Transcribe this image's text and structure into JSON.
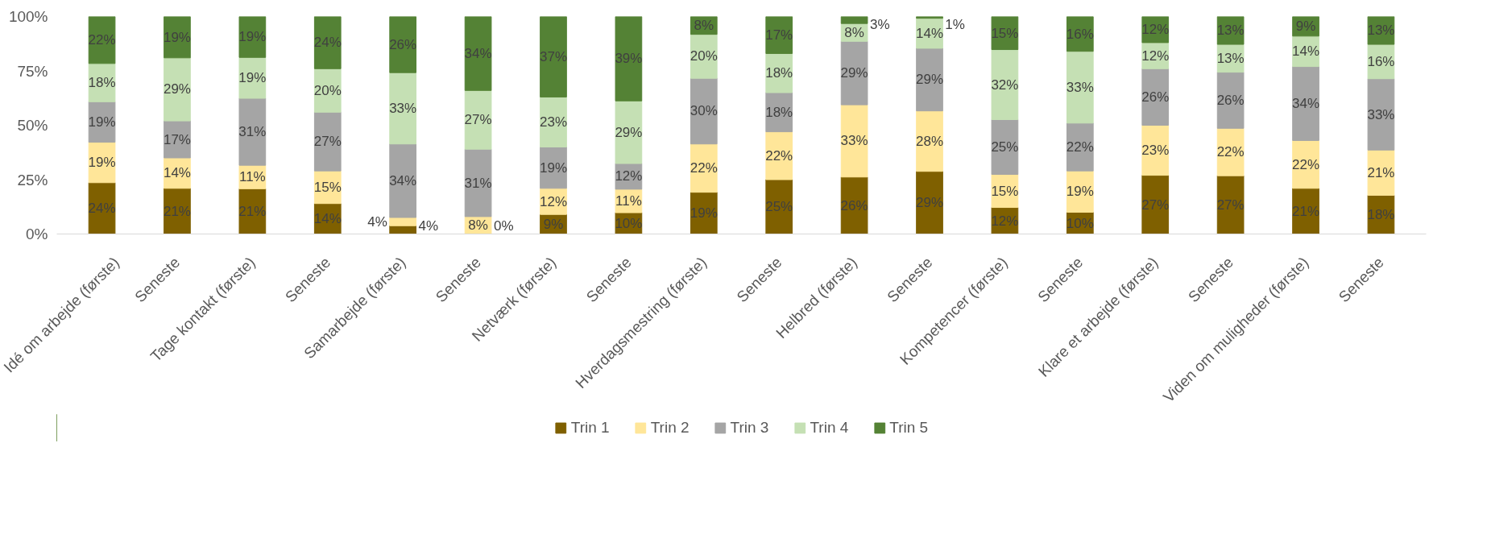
{
  "chart_data": {
    "type": "bar",
    "stacked": true,
    "categories": [
      "Idé om arbejde (første)",
      "Seneste",
      "Tage kontakt (første)",
      "Seneste",
      "Samarbejde (første)",
      "Seneste",
      "Netværk (første)",
      "Seneste",
      "Hverdagsmestring (første)",
      "Seneste",
      "Helbred (første)",
      "Seneste",
      "Kompetencer (første)",
      "Seneste",
      "Klare et arbejde (første)",
      "Seneste",
      "Viden om muligheder (første)",
      "Seneste"
    ],
    "series": [
      {
        "name": "Trin 1",
        "color": "#7f6000",
        "values": [
          23.6,
          21,
          20.8,
          14,
          3.8,
          0,
          9,
          9.8,
          19.2,
          25,
          26.2,
          28.8,
          12.2,
          10,
          27,
          26.8,
          21,
          17.8
        ],
        "value_labels": [
          "24%",
          "21%",
          "21%",
          "14%",
          "4%",
          "0%",
          "9%",
          "10%",
          "19%",
          "25%",
          "26%",
          "29%",
          "12%",
          "10%",
          "27%",
          "27%",
          "21%",
          "18%"
        ]
      },
      {
        "name": "Trin 2",
        "color": "#ffe699",
        "values": [
          18.6,
          14,
          10.8,
          15,
          3.8,
          8,
          12,
          10.8,
          22.2,
          22,
          33.2,
          27.8,
          15.2,
          19,
          23,
          21.8,
          22,
          20.8
        ],
        "value_labels": [
          "19%",
          "14%",
          "11%",
          "15%",
          "4%",
          "8%",
          "12%",
          "11%",
          "22%",
          "22%",
          "33%",
          "28%",
          "15%",
          "19%",
          "23%",
          "22%",
          "22%",
          "21%"
        ]
      },
      {
        "name": "Trin 3",
        "color": "#a5a5a5",
        "values": [
          18.6,
          17,
          30.8,
          27,
          33.8,
          31,
          19,
          11.8,
          30.2,
          18,
          29.2,
          28.8,
          25.2,
          22,
          26,
          25.8,
          34,
          32.8
        ],
        "value_labels": [
          "19%",
          "17%",
          "31%",
          "27%",
          "34%",
          "31%",
          "19%",
          "12%",
          "30%",
          "18%",
          "29%",
          "29%",
          "25%",
          "22%",
          "26%",
          "26%",
          "34%",
          "33%"
        ]
      },
      {
        "name": "Trin 4",
        "color": "#c5e0b4",
        "values": [
          17.6,
          29,
          18.8,
          20,
          32.8,
          27,
          23,
          28.8,
          20.2,
          18,
          8.2,
          13.8,
          32.2,
          33,
          12,
          12.8,
          14,
          15.8
        ],
        "value_labels": [
          "18%",
          "29%",
          "19%",
          "20%",
          "33%",
          "27%",
          "23%",
          "29%",
          "20%",
          "18%",
          "8%",
          "14%",
          "32%",
          "33%",
          "12%",
          "13%",
          "14%",
          "16%"
        ]
      },
      {
        "name": "Trin 5",
        "color": "#548235",
        "values": [
          21.6,
          19,
          18.8,
          24,
          25.8,
          34,
          37,
          38.8,
          8.2,
          17,
          3.2,
          0.8,
          15.2,
          16,
          12,
          12.8,
          9,
          12.8
        ],
        "value_labels": [
          "22%",
          "19%",
          "19%",
          "24%",
          "26%",
          "34%",
          "37%",
          "39%",
          "8%",
          "17%",
          "3%",
          "1%",
          "15%",
          "16%",
          "12%",
          "13%",
          "9%",
          "13%"
        ]
      }
    ],
    "ylim": [
      0,
      100
    ],
    "yticks": [
      {
        "value": 0,
        "label": "0%"
      },
      {
        "value": 25,
        "label": "25%"
      },
      {
        "value": 50,
        "label": "50%"
      },
      {
        "value": 75,
        "label": "75%"
      },
      {
        "value": 100,
        "label": "100%"
      }
    ],
    "grid": false,
    "legend": "bottom"
  }
}
